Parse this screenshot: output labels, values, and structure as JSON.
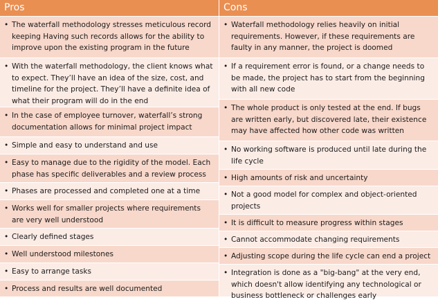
{
  "pros": {
    "title": "Pros",
    "items": [
      "The waterfall methodology stresses meticulous record keeping  Having such records allows for the ability to improve upon the existing program in the future",
      "With the waterfall methodology, the client knows what to expect. They’ll have an idea of the size, cost, and timeline for the project. They’ll have a definite idea of what their program will do in the end",
      "In the case of employee turnover, waterfall’s strong documentation allows for minimal project impact",
      "Simple and easy to understand and use",
      "Easy to manage due to the rigidity of the model. Each phase has specific deliverables and a review process",
      "Phases are processed and completed one at a time",
      "Works well for smaller projects where requirements are very well understood",
      "Clearly defined stages",
      "Well understood milestones",
      "Easy to arrange tasks",
      "Process and results are well documented"
    ]
  },
  "cons": {
    "title": "Cons",
    "items": [
      "Waterfall methodology relies heavily on initial requirements. However, if these requirements are faulty in any manner, the project is doomed",
      "If a requirement error is found, or a change needs to be made, the project has to start from the beginning with all new code",
      "The whole product is only tested at the end. If bugs are written early, but discovered late, their existence may have affected how other code was written",
      "No working software is produced until late during the life cycle",
      "High amounts of risk and uncertainty",
      "Not a good model for complex and object-oriented projects",
      "It is difficult to measure progress within stages",
      "Cannot accommodate changing requirements",
      "Adjusting scope during the life cycle can end a project",
      "Integration is done as a \"big-bang\" at the very end, which doesn't allow identifying any technological or business bottleneck or challenges early"
    ]
  },
  "colors": {
    "header": "#e98f52",
    "row_dark": "#f8d8cb",
    "row_light": "#fcece6"
  }
}
